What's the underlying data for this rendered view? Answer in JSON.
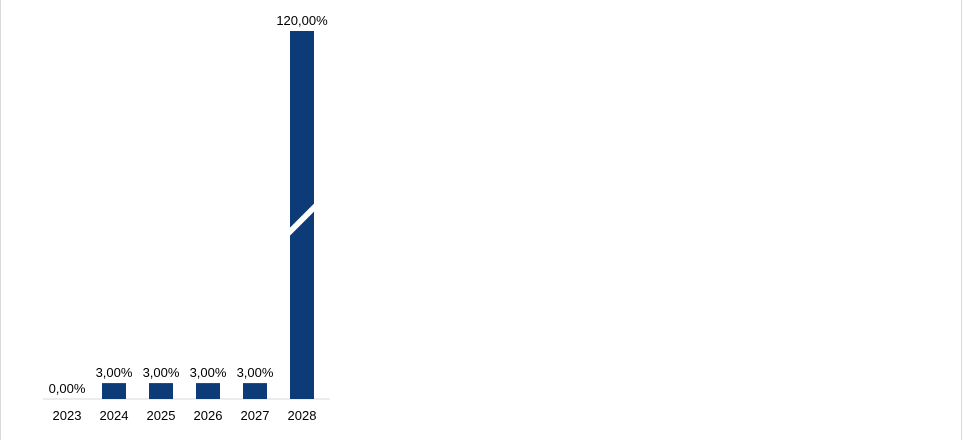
{
  "chart_data": {
    "type": "bar",
    "categories": [
      "2023",
      "2024",
      "2025",
      "2026",
      "2027",
      "2028"
    ],
    "values": [
      0,
      3,
      3,
      3,
      3,
      120
    ],
    "value_labels": [
      "0,00%",
      "3,00%",
      "3,00%",
      "3,00%",
      "3,00%",
      "120,00%"
    ],
    "title": "",
    "xlabel": "",
    "ylabel": "",
    "axis_break": true,
    "grid": false,
    "legend": "none",
    "colors": {
      "bar": "#0d3b78",
      "baseline": "#d9d9d9",
      "text": "#000000"
    }
  }
}
